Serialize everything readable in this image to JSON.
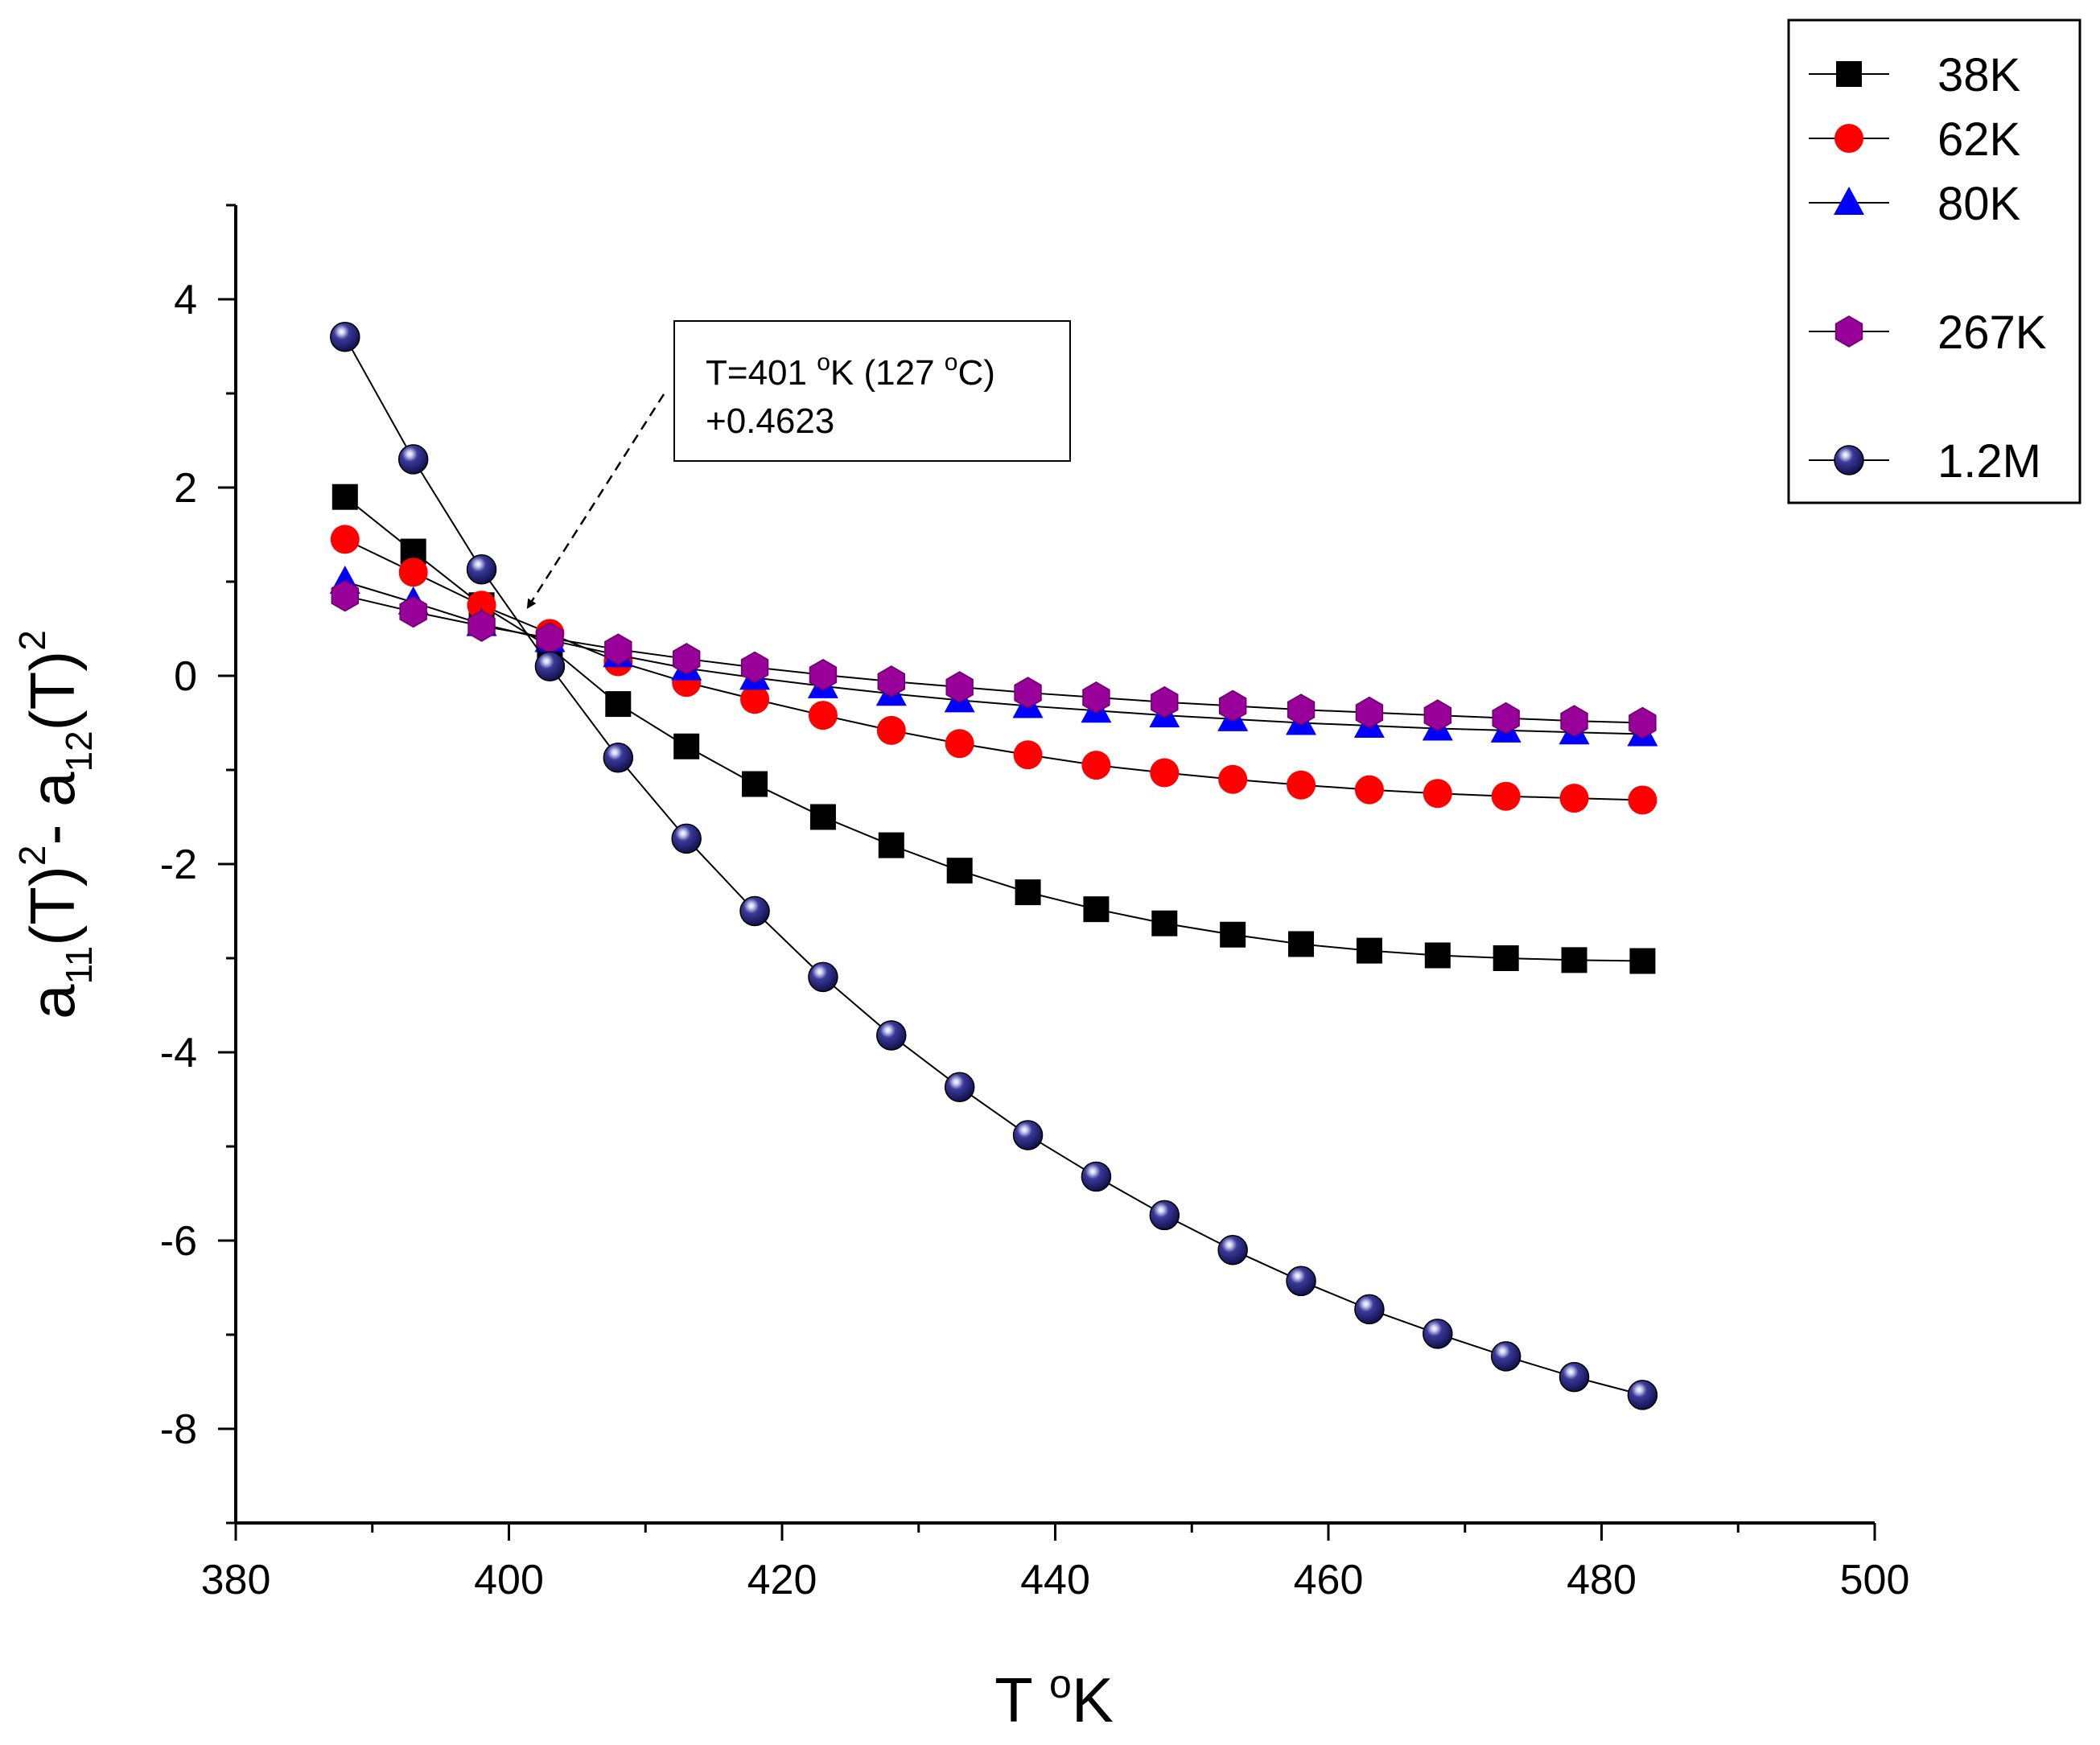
{
  "chart_data": {
    "type": "scatter",
    "title": "",
    "xlabel_main": "T ",
    "xlabel_sup": "o",
    "xlabel_tail": "K",
    "ylabel": {
      "p1": "a",
      "p1_sub": "11",
      "p2": "(T)",
      "p2_sup": "2",
      "p3": "- a",
      "p3_sub": "12",
      "p4": "(T)",
      "p4_sup": "2"
    },
    "xlim": [
      380,
      500
    ],
    "ylim": [
      -9,
      5
    ],
    "x_ticks": [
      380,
      400,
      420,
      440,
      460,
      480,
      500
    ],
    "x_tick_labels": [
      "380",
      "400",
      "420",
      "440",
      "460",
      "480",
      "500"
    ],
    "y_ticks": [
      -8,
      -6,
      -4,
      -2,
      0,
      2,
      4
    ],
    "y_tick_labels": [
      "-8",
      "-6",
      "-4",
      "-2",
      "0",
      "2",
      "4"
    ],
    "x": [
      388,
      393,
      398,
      403,
      408,
      413,
      418,
      423,
      428,
      433,
      438,
      443,
      448,
      453,
      458,
      463,
      468,
      473,
      478,
      483
    ],
    "series": [
      {
        "name": "38K",
        "marker": "square",
        "color": "#000000",
        "values": [
          1.9,
          1.32,
          0.75,
          0.3,
          -0.3,
          -0.75,
          -1.15,
          -1.5,
          -1.8,
          -2.07,
          -2.3,
          -2.48,
          -2.63,
          -2.75,
          -2.85,
          -2.92,
          -2.97,
          -3.0,
          -3.02,
          -3.03
        ]
      },
      {
        "name": "62K",
        "marker": "circle",
        "color": "#ff0000",
        "values": [
          1.45,
          1.1,
          0.75,
          0.45,
          0.15,
          -0.07,
          -0.25,
          -0.42,
          -0.58,
          -0.72,
          -0.84,
          -0.95,
          -1.03,
          -1.1,
          -1.16,
          -1.21,
          -1.25,
          -1.28,
          -1.3,
          -1.32
        ]
      },
      {
        "name": "80K",
        "marker": "triangle",
        "color": "#0000ff",
        "values": [
          1.0,
          0.78,
          0.55,
          0.38,
          0.22,
          0.08,
          -0.02,
          -0.11,
          -0.19,
          -0.26,
          -0.32,
          -0.37,
          -0.42,
          -0.46,
          -0.5,
          -0.53,
          -0.56,
          -0.58,
          -0.6,
          -0.62
        ]
      },
      {
        "name": "267K",
        "marker": "hexagon",
        "color": "#990099",
        "values": [
          0.85,
          0.68,
          0.53,
          0.4,
          0.28,
          0.18,
          0.09,
          0.01,
          -0.06,
          -0.12,
          -0.18,
          -0.23,
          -0.28,
          -0.32,
          -0.36,
          -0.39,
          -0.42,
          -0.45,
          -0.48,
          -0.5
        ]
      },
      {
        "name": "1.2M",
        "marker": "sphere",
        "color": "#1a1a6e",
        "values": [
          3.6,
          2.3,
          1.13,
          0.1,
          -0.87,
          -1.73,
          -2.5,
          -3.2,
          -3.82,
          -4.37,
          -4.88,
          -5.32,
          -5.73,
          -6.1,
          -6.43,
          -6.73,
          -6.99,
          -7.23,
          -7.45,
          -7.64
        ]
      }
    ],
    "annotation": {
      "line1_a": "T=401 ",
      "line1_sup1": "o",
      "line1_b": "K (127 ",
      "line1_sup2": "o",
      "line1_c": "C)",
      "line2": "+0.4623",
      "target_x": 401,
      "target_y": 0.4623
    },
    "legend_position": "top-right",
    "grid": false
  }
}
